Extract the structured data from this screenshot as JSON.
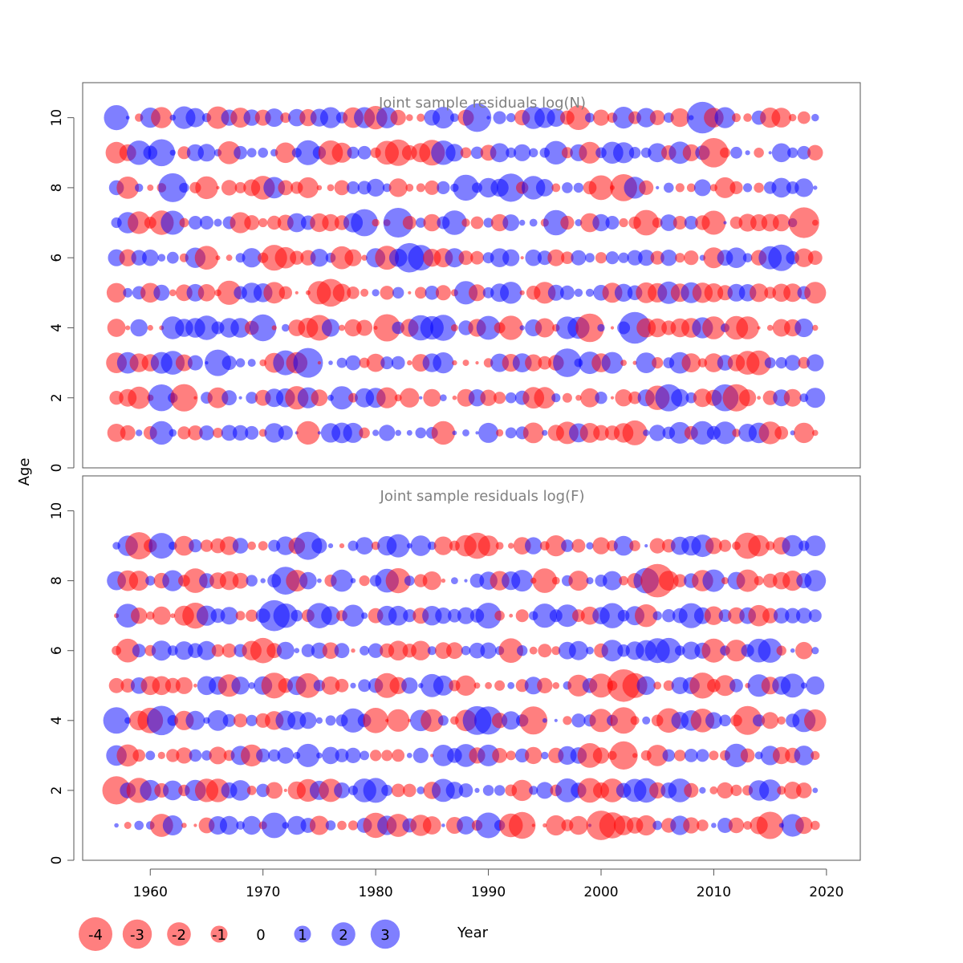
{
  "chart_data": [
    {
      "type": "scatter",
      "panel": "top",
      "title": "Joint sample residuals log(N)",
      "ylabel": "Age",
      "xlim": [
        1954,
        2023
      ],
      "ylim": [
        0,
        11
      ],
      "yticks": [
        "0",
        "2",
        "4",
        "6",
        "8",
        "10"
      ],
      "x": [
        1957,
        1958,
        1959,
        1960,
        1961,
        1962,
        1963,
        1964,
        1965,
        1966,
        1967,
        1968,
        1969,
        1970,
        1971,
        1972,
        1973,
        1974,
        1975,
        1976,
        1977,
        1978,
        1979,
        1980,
        1981,
        1982,
        1983,
        1984,
        1985,
        1986,
        1987,
        1988,
        1989,
        1990,
        1991,
        1992,
        1993,
        1994,
        1995,
        1996,
        1997,
        1998,
        1999,
        2000,
        2001,
        2002,
        2003,
        2004,
        2005,
        2006,
        2007,
        2008,
        2009,
        2010,
        2011,
        2012,
        2013,
        2014,
        2015,
        2016,
        2017,
        2018,
        2019
      ],
      "ages": [
        1,
        2,
        3,
        4,
        5,
        6,
        7,
        8,
        9,
        10
      ],
      "seed": 12345
    },
    {
      "type": "scatter",
      "panel": "bottom",
      "title": "Joint sample residuals log(F)",
      "ylabel": "Age",
      "xlabel": "Year",
      "xlim": [
        1954,
        2023
      ],
      "ylim": [
        0,
        11
      ],
      "yticks": [
        "0",
        "2",
        "4",
        "6",
        "8",
        "10"
      ],
      "xticks": [
        "1960",
        "1970",
        "1980",
        "1990",
        "2000",
        "2010",
        "2020"
      ],
      "x": [
        1957,
        1958,
        1959,
        1960,
        1961,
        1962,
        1963,
        1964,
        1965,
        1966,
        1967,
        1968,
        1969,
        1970,
        1971,
        1972,
        1973,
        1974,
        1975,
        1976,
        1977,
        1978,
        1979,
        1980,
        1981,
        1982,
        1983,
        1984,
        1985,
        1986,
        1987,
        1988,
        1989,
        1990,
        1991,
        1992,
        1993,
        1994,
        1995,
        1996,
        1997,
        1998,
        1999,
        2000,
        2001,
        2002,
        2003,
        2004,
        2005,
        2006,
        2007,
        2008,
        2009,
        2010,
        2011,
        2012,
        2013,
        2014,
        2015,
        2016,
        2017,
        2018,
        2019
      ],
      "ages": [
        1,
        2,
        3,
        4,
        5,
        6,
        7,
        8,
        9
      ],
      "seed": 67890
    }
  ],
  "colors": {
    "negative": "#ff0000",
    "positive": "#0000ff",
    "axis": "#555555",
    "title": "#808080"
  },
  "legend": [
    {
      "label": "-4",
      "value": -4
    },
    {
      "label": "-3",
      "value": -3
    },
    {
      "label": "-2",
      "value": -2
    },
    {
      "label": "-1",
      "value": -1
    },
    {
      "label": "0",
      "value": 0
    },
    {
      "label": "1",
      "value": 1
    },
    {
      "label": "2",
      "value": 2
    },
    {
      "label": "3",
      "value": 3
    }
  ],
  "labels": {
    "ylabel": "Age",
    "xlabel": "Year"
  }
}
